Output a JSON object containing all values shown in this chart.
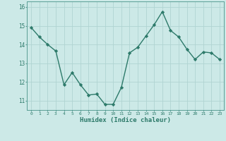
{
  "x": [
    0,
    1,
    2,
    3,
    4,
    5,
    6,
    7,
    8,
    9,
    10,
    11,
    12,
    13,
    14,
    15,
    16,
    17,
    18,
    19,
    20,
    21,
    22,
    23
  ],
  "y": [
    14.9,
    14.4,
    14.0,
    13.65,
    11.85,
    12.5,
    11.85,
    11.3,
    11.35,
    10.8,
    10.8,
    11.7,
    13.55,
    13.85,
    14.45,
    15.05,
    15.75,
    14.75,
    14.4,
    13.75,
    13.2,
    13.6,
    13.55,
    13.2
  ],
  "line_color": "#2d7a6a",
  "marker": "D",
  "markersize": 2.2,
  "linewidth": 1.0,
  "xlabel": "Humidex (Indice chaleur)",
  "xlim": [
    -0.5,
    23.5
  ],
  "ylim": [
    10.5,
    16.3
  ],
  "yticks": [
    11,
    12,
    13,
    14,
    15,
    16
  ],
  "xticks": [
    0,
    1,
    2,
    3,
    4,
    5,
    6,
    7,
    8,
    9,
    10,
    11,
    12,
    13,
    14,
    15,
    16,
    17,
    18,
    19,
    20,
    21,
    22,
    23
  ],
  "xtick_labels": [
    "0",
    "1",
    "2",
    "3",
    "4",
    "5",
    "6",
    "7",
    "8",
    "9",
    "10",
    "11",
    "12",
    "13",
    "14",
    "15",
    "16",
    "17",
    "18",
    "19",
    "20",
    "21",
    "22",
    "23"
  ],
  "background_color": "#cce9e7",
  "grid_color": "#b0d4d2",
  "tick_color": "#2d7a6a",
  "label_color": "#2d7a6a",
  "axis_color": "#5a9e95"
}
